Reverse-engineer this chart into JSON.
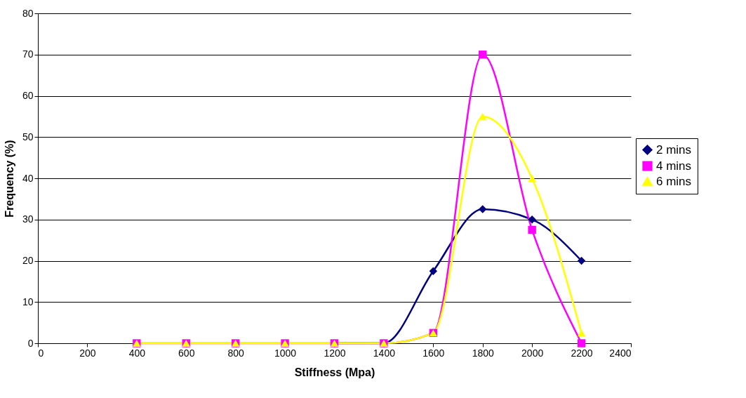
{
  "chart_data": {
    "type": "line",
    "xlabel": "Stiffness (Mpa)",
    "ylabel": "Frequency (%)",
    "x": [
      400,
      600,
      800,
      1000,
      1200,
      1400,
      1600,
      1800,
      2000,
      2200
    ],
    "series": [
      {
        "name": "2 mins",
        "color": "#000080",
        "marker": "diamond",
        "values": [
          null,
          null,
          null,
          null,
          0,
          0,
          17.5,
          32.5,
          30,
          20
        ]
      },
      {
        "name": "4 mins",
        "color": "#ff00ff",
        "marker": "square",
        "values": [
          0,
          0,
          0,
          0,
          0,
          0,
          2.5,
          70,
          27.5,
          0
        ]
      },
      {
        "name": "6 mins",
        "color": "#ffff00",
        "marker": "triangle",
        "values": [
          0,
          0,
          0,
          0,
          0,
          0,
          2.5,
          55,
          40,
          2.5
        ]
      }
    ],
    "xlim": [
      0,
      2400
    ],
    "xticks": [
      0,
      200,
      400,
      600,
      800,
      1000,
      1200,
      1400,
      1600,
      1800,
      2000,
      2200,
      2400
    ],
    "ylim": [
      0,
      80
    ],
    "yticks": [
      0,
      10,
      20,
      30,
      40,
      50,
      60,
      70,
      80
    ],
    "grid": "y",
    "legend": "right",
    "line_style": "solid"
  }
}
